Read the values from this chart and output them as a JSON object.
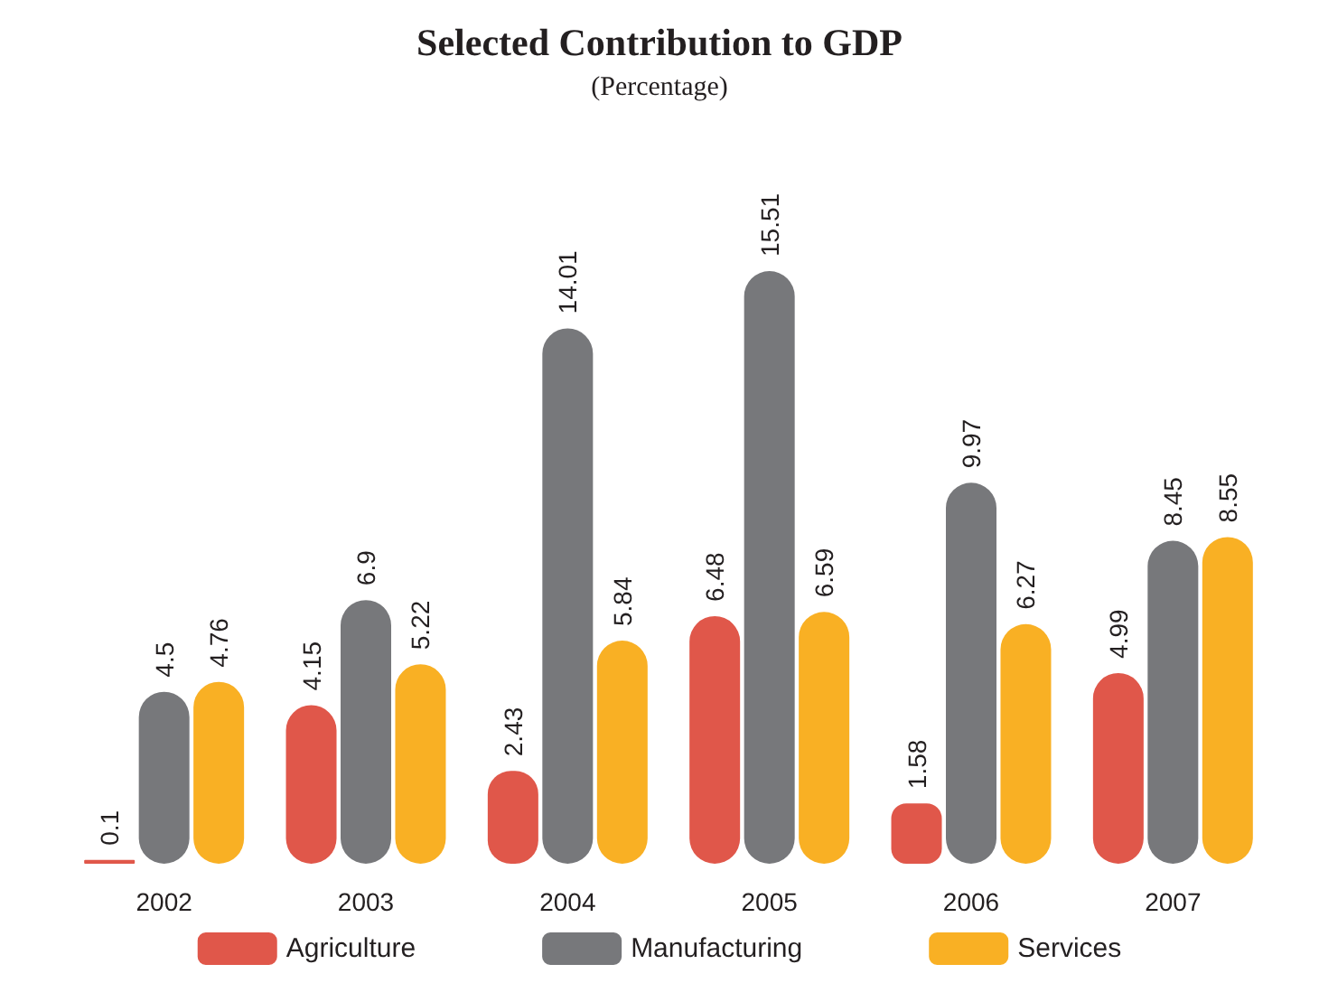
{
  "chart_data": {
    "type": "bar",
    "title": "Selected Contribution to GDP",
    "subtitle": "(Percentage)",
    "categories": [
      "2002",
      "2003",
      "2004",
      "2005",
      "2006",
      "2007"
    ],
    "series": [
      {
        "name": "Agriculture",
        "color": "#e0574a",
        "values": [
          0.1,
          4.15,
          2.43,
          6.48,
          1.58,
          4.99
        ]
      },
      {
        "name": "Manufacturing",
        "color": "#77787b",
        "values": [
          4.5,
          6.9,
          14.01,
          15.51,
          9.97,
          8.45
        ]
      },
      {
        "name": "Services",
        "color": "#f9b024",
        "values": [
          4.76,
          5.22,
          5.84,
          6.59,
          6.27,
          8.55
        ]
      }
    ],
    "data_labels": true,
    "legend": "bottom"
  }
}
